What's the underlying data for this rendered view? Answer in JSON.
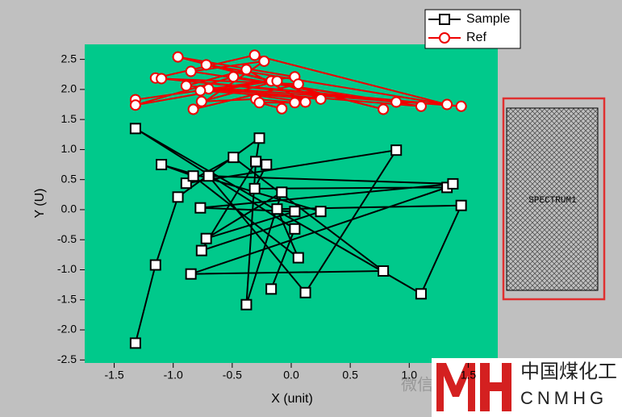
{
  "chart_data": {
    "type": "line",
    "xlabel": "X (unit)",
    "ylabel": "Y (U)",
    "xlim": [
      -1.75,
      1.75
    ],
    "ylim": [
      -2.55,
      2.75
    ],
    "xticks": [
      -1.5,
      {
        "value": -1,
        "label": "-1.0"
      },
      -0.5,
      {
        "value": 0,
        "label": "0.0"
      },
      0.5,
      {
        "value": 1,
        "label": "1.0"
      },
      1.5
    ],
    "yticks": [
      -2.5,
      {
        "value": -2,
        "label": "-2.0"
      },
      -1.5,
      {
        "value": -1,
        "label": "-1.0"
      },
      -0.5,
      {
        "value": 0,
        "label": "0.0"
      },
      0.5,
      {
        "value": 1,
        "label": "1.0"
      },
      1.5,
      {
        "value": 2,
        "label": "2.0"
      },
      2.5
    ],
    "plot_color": "#00c98b",
    "legend": "top-right",
    "series": [
      {
        "name": "Sample",
        "color": "#000000",
        "marker": "square",
        "x": [
          -1.32,
          -1.15,
          -0.96,
          -0.27,
          -0.3,
          -0.21,
          -0.31,
          1.32,
          -0.85,
          0.78,
          -0.49,
          -0.89,
          0.89,
          0.12,
          -0.7,
          1.37,
          -0.77,
          0.03,
          -0.72,
          -0.08,
          -0.38,
          -0.3,
          -0.76,
          0.25,
          -1.1,
          -0.83,
          0.06,
          -0.12,
          1.44,
          1.1,
          -1.32,
          0.03,
          -0.17
        ],
        "values": [
          -2.22,
          -0.92,
          0.21,
          1.19,
          0.8,
          0.75,
          0.35,
          0.37,
          -1.07,
          -1.02,
          0.87,
          0.44,
          0.99,
          -1.38,
          0.56,
          0.43,
          0.03,
          -0.03,
          -0.48,
          0.29,
          -1.58,
          0.8,
          -0.68,
          -0.03,
          0.75,
          0.56,
          -0.8,
          0.01,
          0.07,
          -1.4,
          1.35,
          -0.32,
          -1.32
        ]
      },
      {
        "name": "Ref",
        "color": "#ee0000",
        "marker": "circle",
        "x": [
          -1.32,
          0.03,
          -0.96,
          0.78,
          -0.72,
          1.32,
          -0.31,
          -1.15,
          0.89,
          -0.85,
          -0.23,
          -0.83,
          0.06,
          -1.1,
          1.44,
          -0.89,
          -0.38,
          0.12,
          -0.7,
          1.1,
          -0.49,
          -1.32,
          -0.17,
          -0.77,
          0.25,
          -0.12,
          -0.76,
          -0.3,
          0.03,
          -0.27,
          -0.08
        ],
        "values": [
          1.83,
          2.21,
          2.54,
          1.67,
          2.41,
          1.75,
          2.57,
          2.19,
          1.79,
          2.3,
          2.47,
          1.67,
          2.09,
          2.18,
          1.72,
          2.06,
          2.33,
          1.79,
          2.01,
          1.72,
          2.21,
          1.74,
          2.14,
          1.98,
          1.84,
          2.14,
          1.8,
          1.84,
          1.78,
          1.78,
          1.68
        ]
      }
    ]
  },
  "inset": {
    "label": "SPECTRUM1"
  },
  "watermark": {
    "wechat": "微信",
    "cn": "中国煤化工",
    "en": "CNMHG"
  }
}
